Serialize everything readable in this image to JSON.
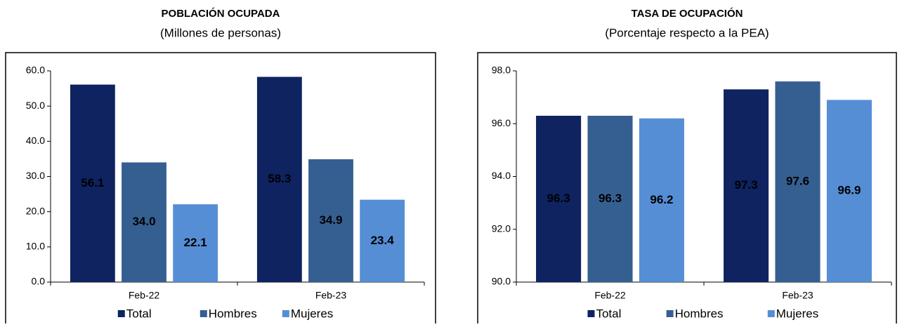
{
  "chart_data": [
    {
      "type": "bar",
      "title": "POBLACIÓN OCUPADA",
      "subtitle": "(Millones de personas)",
      "categories": [
        "Feb-22",
        "Feb-23"
      ],
      "series": [
        {
          "name": "Total",
          "color": "#0e2360",
          "values": [
            56.1,
            58.3
          ],
          "value_labels": [
            "56.1",
            "58.3"
          ]
        },
        {
          "name": "Hombres",
          "color": "#365f91",
          "values": [
            34.0,
            34.9
          ],
          "value_labels": [
            "34.0",
            "34.9"
          ]
        },
        {
          "name": "Mujeres",
          "color": "#558ed5",
          "values": [
            22.1,
            23.4
          ],
          "value_labels": [
            "22.1",
            "23.4"
          ]
        }
      ],
      "ylim": [
        0,
        60
      ],
      "yticks": [
        {
          "value": 0,
          "label": "0.0"
        },
        {
          "value": 10,
          "label": "10.0"
        },
        {
          "value": 20,
          "label": "20.0"
        },
        {
          "value": 30,
          "label": "30.0"
        },
        {
          "value": 40,
          "label": "40.0"
        },
        {
          "value": 50,
          "label": "50.0"
        },
        {
          "value": 60,
          "label": "60.0"
        }
      ],
      "legend": "bottom"
    },
    {
      "type": "bar",
      "title": "TASA DE OCUPACIÓN",
      "subtitle": "(Porcentaje respecto a la PEA)",
      "categories": [
        "Feb-22",
        "Feb-23"
      ],
      "series": [
        {
          "name": "Total",
          "color": "#0e2360",
          "values": [
            96.3,
            97.3
          ]
        },
        {
          "name": "Hombres",
          "color": "#365f91",
          "values": [
            96.3,
            97.6
          ]
        },
        {
          "name": "Mujeres",
          "color": "#558ed5",
          "values": [
            96.2,
            96.9
          ]
        }
      ],
      "ylim": [
        90,
        98
      ],
      "yticks": [
        {
          "value": 90,
          "label": "90.0"
        },
        {
          "value": 92,
          "label": "92.0"
        },
        {
          "value": 94,
          "label": "94.0"
        },
        {
          "value": 96,
          "label": "96.0"
        },
        {
          "value": 98,
          "label": "98.0"
        }
      ],
      "legend": "bottom"
    }
  ]
}
